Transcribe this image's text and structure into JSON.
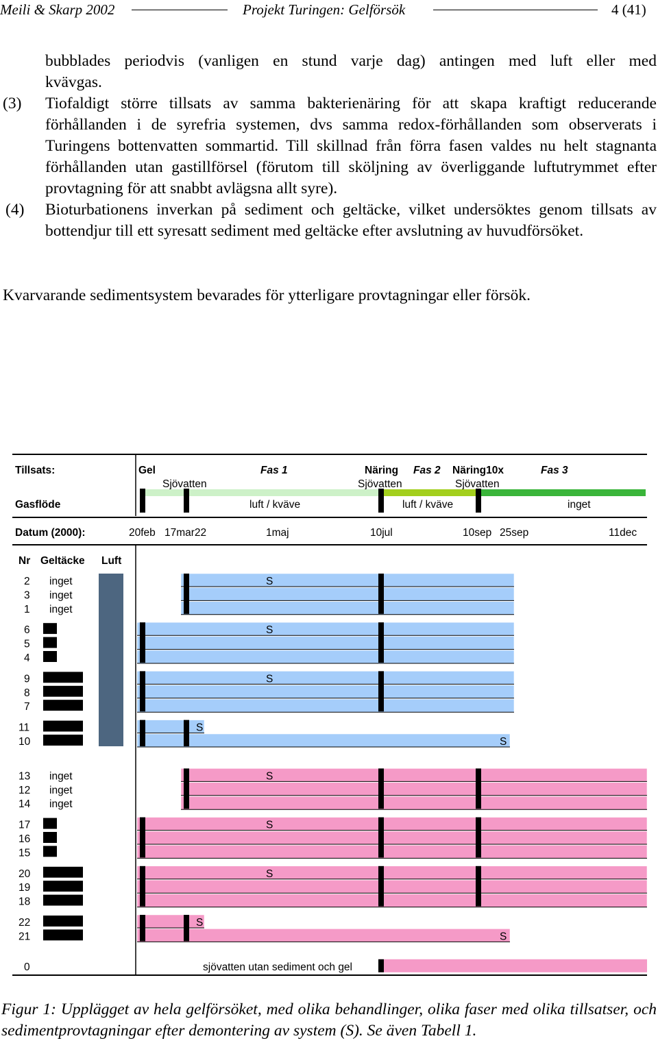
{
  "header": {
    "authors": "Meili & Skarp 2002",
    "project": "Projekt Turingen: Gelförsök",
    "page": "4 (41)"
  },
  "body": {
    "cont_line1": "bubblades periodvis (vanligen en stund varje dag) antingen med luft eller med",
    "cont_line2": "kvävgas.",
    "item3_num": "(3)",
    "item3_text": "Tiofaldigt större tillsats av samma bakterienäring för att skapa kraftigt reducerande förhållanden i de syrefria systemen, dvs samma redox-förhållanden som observerats i Turingens bottenvatten sommartid. Till skillnad från förra fasen valdes nu helt stagnanta förhållanden utan gastillförsel (förutom till sköljning av överliggande luftutrymmet efter provtagning för att snabbt avlägsna allt syre).",
    "item4_num": "(4)",
    "item4_text": "Bioturbationens inverkan på sediment och geltäcke, vilket undersöktes genom tillsats av bottendjur till ett syresatt sediment med geltäcke efter avslutning av huvudförsöket.",
    "closing": "Kvarvarande sedimentsystem bevarades för ytterligare provtagningar eller försök."
  },
  "figure": {
    "tillsats_label": "Tillsats:",
    "tillsats_items": [
      {
        "text": "Gel",
        "italic": false
      },
      {
        "text": "Fas 1",
        "italic": true
      },
      {
        "text": "Näring",
        "italic": false
      },
      {
        "text": "Fas 2",
        "italic": true
      },
      {
        "text": "Näring10x",
        "italic": false
      },
      {
        "text": "Fas 3",
        "italic": true
      }
    ],
    "sjovatten_labels": [
      "Sjövatten",
      "Sjövatten",
      "Sjövatten"
    ],
    "gasflode_label": "Gasflöde",
    "gas_labels": [
      "luft / kväve",
      "luft / kväve",
      "inget"
    ],
    "datum_label": "Datum (2000):",
    "dates": [
      "20feb",
      "17mar22",
      "1maj",
      "10jul",
      "10sep",
      "25sep",
      "11dec"
    ],
    "col_headers": {
      "nr": "Nr",
      "geltacke": "Geltäcke",
      "luft": "Luft"
    },
    "sampling_mark": "S",
    "row_zero_label": "sjövatten utan sediment och gel",
    "colors": {
      "blue": "#a5cdfa",
      "pink": "#f59ac7",
      "luft": "#4d6680",
      "phase_light": "#cdf1c8",
      "phase_mid": "#a3cf1d",
      "phase_dark": "#3ab53a"
    },
    "groups": [
      {
        "color": "blue",
        "gel": "inget",
        "gap": 0,
        "s_row": 0,
        "s_pos": "fas1",
        "end": "sep25",
        "rows": [
          {
            "nr": "2",
            "gel_text": "inget"
          },
          {
            "nr": "3",
            "gel_text": "inget"
          },
          {
            "nr": "1",
            "gel_text": "inget"
          }
        ]
      },
      {
        "color": "blue",
        "gel": "thin",
        "gap": 10,
        "s_row": 0,
        "s_pos": "fas1",
        "end": "sep25",
        "rows": [
          {
            "nr": "6"
          },
          {
            "nr": "5"
          },
          {
            "nr": "4"
          }
        ]
      },
      {
        "color": "blue",
        "gel": "thick",
        "gap": 10,
        "s_row": 0,
        "s_pos": "fas1",
        "end": "sep25",
        "rows": [
          {
            "nr": "9"
          },
          {
            "nr": "8"
          },
          {
            "nr": "7"
          }
        ]
      },
      {
        "color": "blue",
        "gel": "thick",
        "gap": 10,
        "s_row": 0,
        "s_pos": "mar22",
        "s2_row": 1,
        "s2_pos": "sep25",
        "end": "mixed",
        "rows": [
          {
            "nr": "11"
          },
          {
            "nr": "10"
          }
        ]
      },
      {
        "color": "pink",
        "gel": "inget",
        "gap": 30,
        "s_row": 0,
        "s_pos": "fas1",
        "end": "dec11",
        "rows": [
          {
            "nr": "13",
            "gel_text": "inget"
          },
          {
            "nr": "12",
            "gel_text": "inget"
          },
          {
            "nr": "14",
            "gel_text": "inget"
          }
        ]
      },
      {
        "color": "pink",
        "gel": "thin",
        "gap": 10,
        "s_row": 0,
        "s_pos": "fas1",
        "end": "dec11",
        "rows": [
          {
            "nr": "17"
          },
          {
            "nr": "16"
          },
          {
            "nr": "15"
          }
        ]
      },
      {
        "color": "pink",
        "gel": "thick",
        "gap": 10,
        "s_row": 0,
        "s_pos": "fas1",
        "end": "dec11",
        "rows": [
          {
            "nr": "20"
          },
          {
            "nr": "19"
          },
          {
            "nr": "18"
          }
        ]
      },
      {
        "color": "pink",
        "gel": "thick",
        "gap": 10,
        "s_row": 0,
        "s_pos": "mar22",
        "s2_row": 1,
        "s2_pos": "sep25",
        "end": "mixed",
        "rows": [
          {
            "nr": "22"
          },
          {
            "nr": "21"
          }
        ]
      }
    ],
    "row_zero": {
      "nr": "0",
      "color": "pink"
    }
  },
  "caption": {
    "label": "Figur 1",
    "text": "Upplägget av hela gelförsöket, med olika behandlinger, olika faser med olika tillsatser, och sedimentprovtagningar efter demontering av system (S). Se även Tabell 1."
  }
}
